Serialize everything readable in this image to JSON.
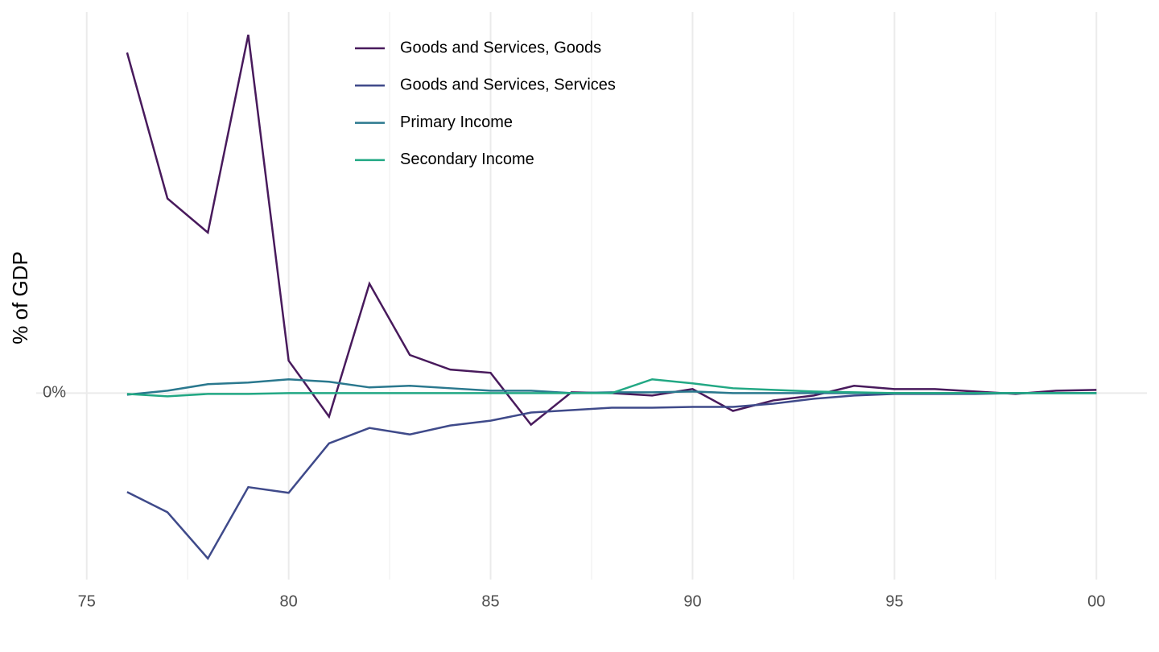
{
  "chart_data": {
    "type": "line",
    "y_label": "% of GDP",
    "x": [
      1976,
      1977,
      1978,
      1979,
      1980,
      1981,
      1982,
      1983,
      1984,
      1985,
      1986,
      1987,
      1988,
      1989,
      1990,
      1991,
      1992,
      1993,
      1994,
      1995,
      1996,
      1997,
      1998,
      1999,
      2000
    ],
    "series": [
      {
        "name": "Goods and Services, Goods",
        "color": "#481a5c",
        "values": [
          4.2,
          2.4,
          1.98,
          4.42,
          0.4,
          -0.29,
          1.35,
          0.47,
          0.29,
          0.25,
          -0.39,
          0.01,
          0,
          -0.03,
          0.05,
          -0.22,
          -0.09,
          -0.03,
          0.09,
          0.05,
          0.05,
          0.02,
          -0.01,
          0.03,
          0.04
        ]
      },
      {
        "name": "Goods and Services, Services",
        "color": "#3f4a8a",
        "values": [
          -1.22,
          -1.47,
          -2.04,
          -1.16,
          -1.23,
          -0.62,
          -0.43,
          -0.51,
          -0.4,
          -0.34,
          -0.24,
          -0.21,
          -0.18,
          -0.18,
          -0.17,
          -0.17,
          -0.13,
          -0.07,
          -0.03,
          -0.01,
          -0.01,
          -0.01,
          0,
          0,
          0
        ]
      },
      {
        "name": "Primary Income",
        "color": "#2a788e",
        "values": [
          -0.02,
          0.03,
          0.11,
          0.13,
          0.17,
          0.14,
          0.07,
          0.09,
          0.06,
          0.03,
          0.03,
          0,
          0.01,
          0.01,
          0.02,
          0,
          0,
          0,
          0,
          0,
          0,
          0,
          0,
          0,
          0
        ]
      },
      {
        "name": "Secondary Income",
        "color": "#22a884",
        "values": [
          -0.01,
          -0.04,
          -0.01,
          -0.01,
          0,
          0,
          0,
          0,
          0,
          0,
          0,
          0,
          0,
          0.17,
          0.12,
          0.06,
          0.04,
          0.02,
          0.01,
          0,
          0,
          0,
          0,
          0,
          0
        ]
      }
    ],
    "xlim": [
      1973.75,
      2001.25
    ],
    "xticks": [
      {
        "value": 1975,
        "label": "75"
      },
      {
        "value": 1980,
        "label": "80"
      },
      {
        "value": 1985,
        "label": "85"
      },
      {
        "value": 1990,
        "label": "90"
      },
      {
        "value": 1995,
        "label": "95"
      },
      {
        "value": 2000,
        "label": "00"
      }
    ],
    "ylim": [
      -2.3,
      4.7
    ],
    "yticks": [
      {
        "value": 0,
        "label": "0%"
      }
    ],
    "grid": true,
    "legend": "top"
  }
}
